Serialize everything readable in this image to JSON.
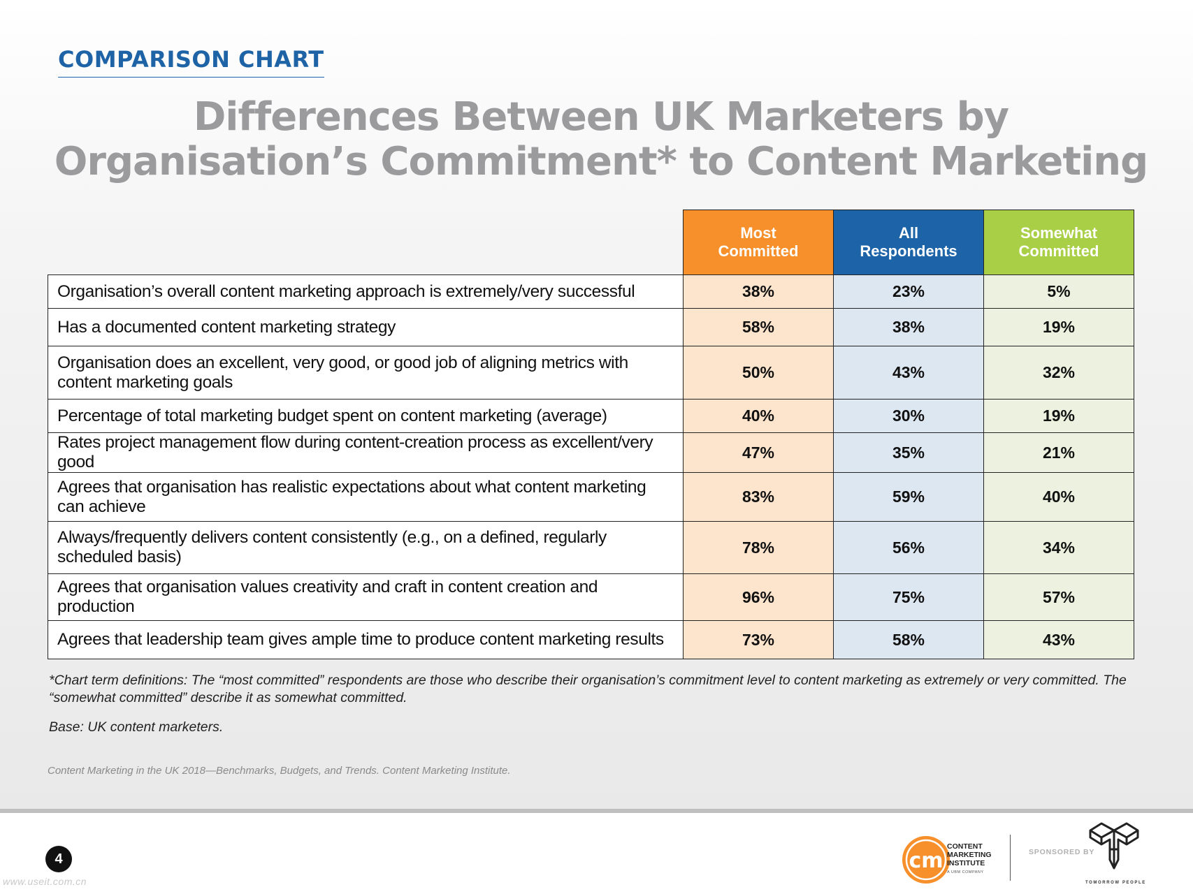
{
  "header": {
    "section_label": "COMPARISON CHART",
    "title_line1": "Differences Between UK Marketers by",
    "title_line2": "Organisation’s Commitment* to Content Marketing"
  },
  "chart_data": {
    "type": "table",
    "title": "Differences Between UK Marketers by Organisation’s Commitment* to Content Marketing",
    "columns": [
      {
        "label": "Most Committed",
        "line1": "Most",
        "line2": "Committed",
        "color": "#f7902b"
      },
      {
        "label": "All Respondents",
        "line1": "All",
        "line2": "Respondents",
        "color": "#1c63a7"
      },
      {
        "label": "Somewhat Committed",
        "line1": "Somewhat",
        "line2": "Committed",
        "color": "#a8cf45"
      }
    ],
    "rows": [
      {
        "label": "Organisation’s overall content marketing approach is extremely/very successful",
        "values": [
          "38%",
          "23%",
          "5%"
        ]
      },
      {
        "label": "Has a documented content marketing strategy",
        "values": [
          "58%",
          "38%",
          "19%"
        ]
      },
      {
        "label": "Organisation does an excellent, very good, or good job of aligning metrics with content marketing goals",
        "values": [
          "50%",
          "43%",
          "32%"
        ]
      },
      {
        "label": "Percentage of total marketing budget spent on content marketing (average)",
        "values": [
          "40%",
          "30%",
          "19%"
        ]
      },
      {
        "label": "Rates project management flow during content-creation process as excellent/very good",
        "values": [
          "47%",
          "35%",
          "21%"
        ]
      },
      {
        "label": "Agrees that organisation has realistic expectations about what content marketing can achieve",
        "values": [
          "83%",
          "59%",
          "40%"
        ]
      },
      {
        "label": "Always/frequently delivers content consistently (e.g., on a defined, regularly scheduled basis)",
        "values": [
          "78%",
          "56%",
          "34%"
        ]
      },
      {
        "label": "Agrees that organisation values creativity and craft in content creation and production",
        "values": [
          "96%",
          "75%",
          "57%"
        ]
      },
      {
        "label": "Agrees that leadership team gives ample time to produce content marketing results",
        "values": [
          "73%",
          "58%",
          "43%"
        ]
      }
    ]
  },
  "notes": {
    "definitions": "*Chart term definitions: The “most committed” respondents are those who describe their organisation’s commitment level to content marketing as extremely or very committed. The “somewhat committed” describe it as somewhat committed.",
    "base": "Base: UK content marketers.",
    "source": "Content Marketing in the UK 2018—Benchmarks, Budgets, and Trends. Content Marketing Institute."
  },
  "footer": {
    "page_number": "4",
    "watermark": "www.useit.com.cn",
    "cmi_line1": "CONTENT",
    "cmi_line2": "MARKETING",
    "cmi_line3": "INSTITUTE",
    "cmi_logo_mark": "cm",
    "cmi_sub": "A UBM COMPANY",
    "sponsored_label": "SPONSORED BY",
    "sponsor_name": "TOMORROW PEOPLE"
  }
}
